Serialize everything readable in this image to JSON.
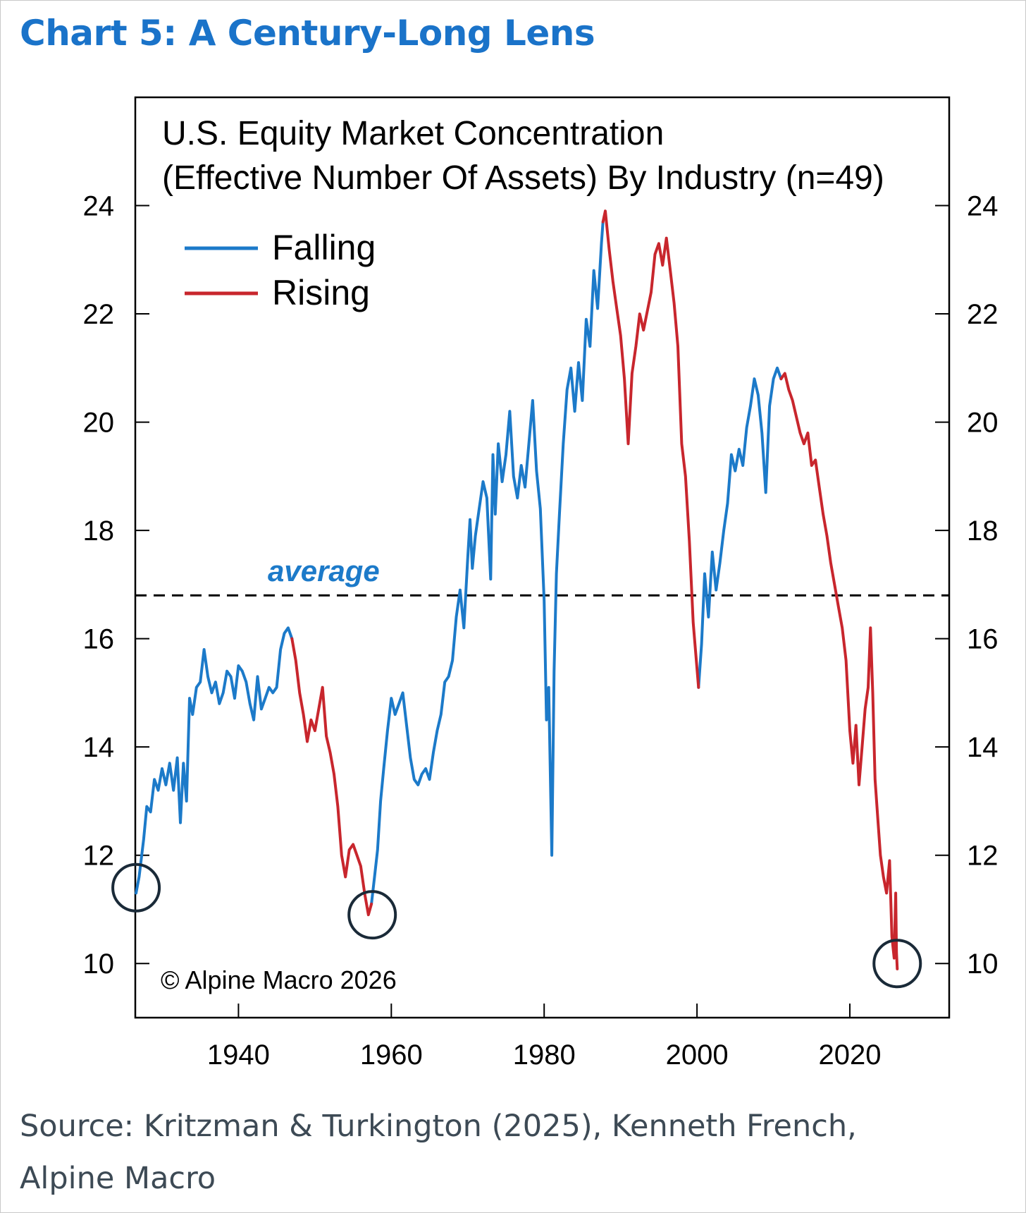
{
  "page": {
    "headline": "Chart 5: A Century-Long Lens",
    "source_line1": "Source: Kritzman & Turkington (2025), Kenneth French,",
    "source_line2": "Alpine Macro"
  },
  "chart_data": {
    "type": "line",
    "title": "U.S. Equity Market Concentration",
    "subtitle": "(Effective Number Of Assets) By Industry (n=49)",
    "xlabel": "",
    "ylabel": "",
    "xlim": [
      1926.5,
      2033
    ],
    "ylim": [
      9.0,
      26.0
    ],
    "x_ticks": [
      1940,
      1960,
      1980,
      2000,
      2020
    ],
    "x_tick_labels": [
      "1940",
      "1960",
      "1980",
      "2000",
      "2020"
    ],
    "y_ticks": [
      10,
      12,
      14,
      16,
      18,
      20,
      22,
      24
    ],
    "y_tick_labels": [
      "10",
      "12",
      "14",
      "16",
      "18",
      "20",
      "22",
      "24"
    ],
    "right_axis": true,
    "grid": false,
    "legend": "top-left",
    "average": 16.8,
    "average_label": "average",
    "copyright": "© Alpine Macro 2026",
    "colors": {
      "falling": "#1c7ac9",
      "rising": "#c8262d",
      "average": "#1c7ac9",
      "circle": "#1a2a38"
    },
    "series": [
      {
        "name": "Falling",
        "color": "#1c7ac9",
        "segments": [
          [
            [
              1926.6,
              11.3
            ],
            [
              1927.0,
              11.6
            ],
            [
              1927.6,
              12.3
            ],
            [
              1928.0,
              12.9
            ],
            [
              1928.5,
              12.8
            ],
            [
              1929.0,
              13.4
            ],
            [
              1929.5,
              13.2
            ],
            [
              1930.0,
              13.6
            ],
            [
              1930.5,
              13.3
            ],
            [
              1931.0,
              13.7
            ],
            [
              1931.5,
              13.2
            ],
            [
              1932.0,
              13.8
            ],
            [
              1932.4,
              12.6
            ],
            [
              1932.8,
              13.7
            ],
            [
              1933.2,
              13.0
            ],
            [
              1933.6,
              14.9
            ],
            [
              1934.0,
              14.6
            ],
            [
              1934.5,
              15.1
            ],
            [
              1935.0,
              15.2
            ],
            [
              1935.5,
              15.8
            ],
            [
              1936.0,
              15.3
            ],
            [
              1936.5,
              15.0
            ],
            [
              1937.0,
              15.2
            ],
            [
              1937.5,
              14.8
            ],
            [
              1938.0,
              15.0
            ],
            [
              1938.5,
              15.4
            ],
            [
              1939.0,
              15.3
            ],
            [
              1939.5,
              14.9
            ],
            [
              1940.0,
              15.5
            ],
            [
              1940.5,
              15.4
            ],
            [
              1941.0,
              15.2
            ],
            [
              1941.5,
              14.8
            ],
            [
              1942.0,
              14.5
            ],
            [
              1942.5,
              15.3
            ],
            [
              1943.0,
              14.7
            ],
            [
              1943.5,
              14.9
            ],
            [
              1944.0,
              15.1
            ],
            [
              1944.5,
              15.0
            ],
            [
              1945.0,
              15.1
            ],
            [
              1945.5,
              15.8
            ],
            [
              1946.0,
              16.1
            ],
            [
              1946.5,
              16.2
            ],
            [
              1947.0,
              16.0
            ]
          ],
          [
            [
              1957.4,
              11.1
            ],
            [
              1957.8,
              11.6
            ],
            [
              1958.2,
              12.1
            ],
            [
              1958.6,
              13.0
            ],
            [
              1959.0,
              13.6
            ],
            [
              1959.5,
              14.3
            ],
            [
              1960.0,
              14.9
            ],
            [
              1960.5,
              14.6
            ],
            [
              1961.0,
              14.8
            ],
            [
              1961.5,
              15.0
            ],
            [
              1962.0,
              14.4
            ],
            [
              1962.5,
              13.8
            ],
            [
              1963.0,
              13.4
            ],
            [
              1963.5,
              13.3
            ],
            [
              1964.0,
              13.5
            ],
            [
              1964.5,
              13.6
            ],
            [
              1965.0,
              13.4
            ],
            [
              1965.5,
              13.9
            ],
            [
              1966.0,
              14.3
            ],
            [
              1966.5,
              14.6
            ],
            [
              1967.0,
              15.2
            ],
            [
              1967.5,
              15.3
            ],
            [
              1968.0,
              15.6
            ],
            [
              1968.5,
              16.4
            ],
            [
              1969.0,
              16.9
            ],
            [
              1969.5,
              16.2
            ],
            [
              1970.0,
              17.5
            ],
            [
              1970.3,
              18.2
            ],
            [
              1970.6,
              17.3
            ],
            [
              1971.0,
              17.9
            ],
            [
              1971.5,
              18.4
            ],
            [
              1972.0,
              18.9
            ],
            [
              1972.5,
              18.6
            ],
            [
              1973.0,
              17.1
            ],
            [
              1973.3,
              19.4
            ],
            [
              1973.6,
              18.3
            ],
            [
              1974.0,
              19.6
            ],
            [
              1974.5,
              18.9
            ],
            [
              1975.0,
              19.4
            ],
            [
              1975.5,
              20.2
            ],
            [
              1976.0,
              19.0
            ],
            [
              1976.5,
              18.6
            ],
            [
              1977.0,
              19.2
            ],
            [
              1977.5,
              18.8
            ],
            [
              1978.0,
              19.6
            ],
            [
              1978.5,
              20.4
            ],
            [
              1979.0,
              19.1
            ],
            [
              1979.5,
              18.4
            ],
            [
              1980.0,
              16.7
            ],
            [
              1980.3,
              14.5
            ],
            [
              1980.6,
              15.1
            ],
            [
              1981.0,
              12.0
            ],
            [
              1981.3,
              15.4
            ],
            [
              1981.6,
              17.2
            ],
            [
              1982.0,
              18.3
            ],
            [
              1982.5,
              19.6
            ],
            [
              1983.0,
              20.6
            ],
            [
              1983.5,
              21.0
            ],
            [
              1984.0,
              20.2
            ],
            [
              1984.5,
              21.1
            ],
            [
              1985.0,
              20.4
            ],
            [
              1985.5,
              21.9
            ],
            [
              1986.0,
              21.4
            ],
            [
              1986.5,
              22.8
            ],
            [
              1987.0,
              22.1
            ],
            [
              1987.5,
              23.3
            ],
            [
              1987.7,
              23.7
            ]
          ],
          [
            [
              2000.2,
              15.1
            ],
            [
              2000.6,
              15.9
            ],
            [
              2001.0,
              17.2
            ],
            [
              2001.5,
              16.4
            ],
            [
              2002.0,
              17.6
            ],
            [
              2002.5,
              16.9
            ],
            [
              2003.0,
              17.4
            ],
            [
              2003.5,
              18.0
            ],
            [
              2004.0,
              18.5
            ],
            [
              2004.5,
              19.4
            ],
            [
              2005.0,
              19.1
            ],
            [
              2005.5,
              19.5
            ],
            [
              2006.0,
              19.2
            ],
            [
              2006.5,
              19.9
            ],
            [
              2007.0,
              20.3
            ],
            [
              2007.5,
              20.8
            ],
            [
              2008.0,
              20.5
            ],
            [
              2008.5,
              19.8
            ],
            [
              2009.0,
              18.7
            ],
            [
              2009.5,
              20.3
            ],
            [
              2010.0,
              20.8
            ],
            [
              2010.5,
              21.0
            ],
            [
              2011.0,
              20.8
            ]
          ]
        ]
      },
      {
        "name": "Rising",
        "color": "#c8262d",
        "segments": [
          [
            [
              1947.0,
              16.0
            ],
            [
              1947.5,
              15.6
            ],
            [
              1948.0,
              15.0
            ],
            [
              1948.5,
              14.6
            ],
            [
              1949.0,
              14.1
            ],
            [
              1949.5,
              14.5
            ],
            [
              1950.0,
              14.3
            ],
            [
              1950.5,
              14.7
            ],
            [
              1951.0,
              15.1
            ],
            [
              1951.5,
              14.2
            ],
            [
              1952.0,
              13.9
            ],
            [
              1952.5,
              13.5
            ],
            [
              1953.0,
              12.9
            ],
            [
              1953.5,
              12.0
            ],
            [
              1954.0,
              11.6
            ],
            [
              1954.5,
              12.1
            ],
            [
              1955.0,
              12.2
            ],
            [
              1955.5,
              12.0
            ],
            [
              1956.0,
              11.8
            ],
            [
              1956.5,
              11.3
            ],
            [
              1957.0,
              10.9
            ],
            [
              1957.4,
              11.1
            ]
          ],
          [
            [
              1987.7,
              23.7
            ],
            [
              1988.0,
              23.9
            ],
            [
              1988.5,
              23.2
            ],
            [
              1989.0,
              22.6
            ],
            [
              1989.5,
              22.1
            ],
            [
              1990.0,
              21.6
            ],
            [
              1990.5,
              20.8
            ],
            [
              1991.0,
              19.6
            ],
            [
              1991.5,
              20.9
            ],
            [
              1992.0,
              21.4
            ],
            [
              1992.5,
              22.0
            ],
            [
              1993.0,
              21.7
            ],
            [
              1994.0,
              22.4
            ],
            [
              1994.5,
              23.1
            ],
            [
              1995.0,
              23.3
            ],
            [
              1995.5,
              22.9
            ],
            [
              1996.0,
              23.4
            ],
            [
              1996.5,
              22.8
            ],
            [
              1997.0,
              22.2
            ],
            [
              1997.5,
              21.4
            ],
            [
              1998.0,
              19.6
            ],
            [
              1998.5,
              19.0
            ],
            [
              1999.0,
              17.8
            ],
            [
              1999.5,
              16.3
            ],
            [
              2000.2,
              15.1
            ]
          ],
          [
            [
              2011.0,
              20.8
            ],
            [
              2011.5,
              20.9
            ],
            [
              2012.0,
              20.6
            ],
            [
              2012.5,
              20.4
            ],
            [
              2013.0,
              20.1
            ],
            [
              2013.5,
              19.8
            ],
            [
              2014.0,
              19.6
            ],
            [
              2014.5,
              19.8
            ],
            [
              2015.0,
              19.2
            ],
            [
              2015.5,
              19.3
            ],
            [
              2016.0,
              18.8
            ],
            [
              2016.5,
              18.3
            ],
            [
              2017.0,
              17.9
            ],
            [
              2017.5,
              17.4
            ],
            [
              2018.0,
              17.0
            ],
            [
              2018.5,
              16.6
            ],
            [
              2019.0,
              16.2
            ],
            [
              2019.5,
              15.6
            ],
            [
              2020.0,
              14.3
            ],
            [
              2020.4,
              13.7
            ],
            [
              2020.8,
              14.4
            ],
            [
              2021.2,
              13.3
            ],
            [
              2021.6,
              14.0
            ],
            [
              2022.0,
              14.7
            ],
            [
              2022.4,
              15.1
            ],
            [
              2022.7,
              16.2
            ],
            [
              2023.0,
              15.0
            ],
            [
              2023.3,
              13.4
            ],
            [
              2023.7,
              12.6
            ],
            [
              2024.0,
              12.0
            ],
            [
              2024.4,
              11.6
            ],
            [
              2024.8,
              11.3
            ],
            [
              2025.2,
              11.9
            ],
            [
              2025.5,
              10.5
            ],
            [
              2025.8,
              10.1
            ],
            [
              2026.0,
              11.3
            ],
            [
              2026.1,
              10.2
            ],
            [
              2026.2,
              9.9
            ]
          ]
        ]
      }
    ],
    "highlights": [
      {
        "x": 1926.6,
        "y": 11.4
      },
      {
        "x": 1957.5,
        "y": 10.9
      },
      {
        "x": 2026.2,
        "y": 10.0
      }
    ]
  }
}
